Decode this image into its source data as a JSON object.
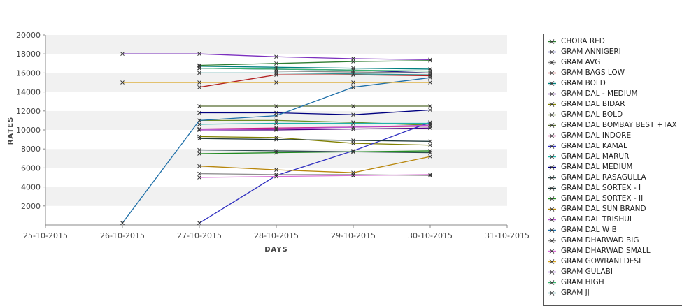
{
  "chart_data": {
    "type": "line",
    "xlabel": "DAYS",
    "ylabel": "RATES",
    "x_ticks": [
      "25-10-2015",
      "26-10-2015",
      "27-10-2015",
      "28-10-2015",
      "29-10-2015",
      "30-10-2015",
      "31-10-2015"
    ],
    "y_ticks": [
      2000,
      4000,
      6000,
      8000,
      10000,
      12000,
      14000,
      16000,
      18000,
      20000
    ],
    "ylim": [
      0,
      20000
    ],
    "grid": "horizontal alternating bands",
    "legend_position": "right",
    "series": [
      {
        "name": "CHORA RED",
        "color": "#2e7d32",
        "points": [
          [
            2,
            16800
          ],
          [
            3,
            17000
          ],
          [
            4,
            17200
          ],
          [
            5,
            17300
          ]
        ]
      },
      {
        "name": "GRAM ANNIGERI",
        "color": "#1a1a8c",
        "points": [
          [
            2,
            16500
          ],
          [
            3,
            16400
          ],
          [
            4,
            16300
          ],
          [
            5,
            16000
          ]
        ]
      },
      {
        "name": "GRAM AVG",
        "color": "#8a8a8a",
        "points": [
          [
            3,
            16200
          ],
          [
            4,
            16100
          ],
          [
            5,
            16000
          ]
        ]
      },
      {
        "name": "GRAM BAGS LOW",
        "color": "#b22222",
        "points": [
          [
            2,
            14500
          ],
          [
            3,
            15800
          ],
          [
            4,
            15800
          ],
          [
            5,
            15700
          ]
        ]
      },
      {
        "name": "GRAM BOLD",
        "color": "#008080",
        "points": [
          [
            2,
            16700
          ],
          [
            3,
            16600
          ],
          [
            4,
            16500
          ],
          [
            5,
            16400
          ]
        ]
      },
      {
        "name": "GRAM DAL - MEDIUM",
        "color": "#4b0082",
        "points": [
          [
            2,
            10000
          ],
          [
            3,
            10000
          ],
          [
            4,
            10100
          ],
          [
            5,
            10200
          ]
        ]
      },
      {
        "name": "GRAM DAL BIDAR",
        "color": "#808000",
        "points": [
          [
            2,
            9300
          ],
          [
            3,
            9200
          ],
          [
            4,
            8600
          ],
          [
            5,
            8400
          ]
        ]
      },
      {
        "name": "GRAM DAL BOLD",
        "color": "#6b8e23",
        "points": [
          [
            2,
            11000
          ],
          [
            3,
            11000
          ],
          [
            4,
            10800
          ],
          [
            5,
            10500
          ]
        ]
      },
      {
        "name": "GRAM DAL BOMBAY BEST +TAX",
        "color": "#556b2f",
        "points": [
          [
            2,
            12500
          ],
          [
            3,
            12500
          ],
          [
            4,
            12500
          ],
          [
            5,
            12500
          ]
        ]
      },
      {
        "name": "GRAM DAL INDORE",
        "color": "#c71585",
        "points": [
          [
            2,
            10100
          ],
          [
            3,
            10200
          ],
          [
            4,
            10300
          ],
          [
            5,
            10400
          ]
        ]
      },
      {
        "name": "GRAM DAL KAMAL",
        "color": "#3030c0",
        "points": [
          [
            2,
            200
          ],
          [
            3,
            5200
          ],
          [
            4,
            7800
          ],
          [
            5,
            10800
          ]
        ]
      },
      {
        "name": "GRAM DAL MARUR",
        "color": "#20b2aa",
        "points": [
          [
            2,
            10600
          ],
          [
            3,
            10700
          ],
          [
            4,
            10700
          ],
          [
            5,
            10700
          ]
        ]
      },
      {
        "name": "GRAM DAL MEDIUM",
        "color": "#000080",
        "points": [
          [
            2,
            11800
          ],
          [
            3,
            11800
          ],
          [
            4,
            11600
          ],
          [
            5,
            12100
          ]
        ]
      },
      {
        "name": "GRAM DAL RASAGULLA",
        "color": "#2f4f4f",
        "points": [
          [
            2,
            7900
          ],
          [
            3,
            7800
          ],
          [
            4,
            7700
          ],
          [
            5,
            7600
          ]
        ]
      },
      {
        "name": "GRAM DAL SORTEX - I",
        "color": "#1f3a3a",
        "points": [
          [
            2,
            9100
          ],
          [
            3,
            9000
          ],
          [
            4,
            8900
          ],
          [
            5,
            8800
          ]
        ]
      },
      {
        "name": "GRAM DAL SORTEX - II",
        "color": "#228b22",
        "points": [
          [
            2,
            7500
          ],
          [
            3,
            7600
          ],
          [
            4,
            7700
          ],
          [
            5,
            7800
          ]
        ]
      },
      {
        "name": "GRAM DAL SUN BRAND",
        "color": "#b8860b",
        "points": [
          [
            2,
            6200
          ],
          [
            3,
            5800
          ],
          [
            4,
            5500
          ],
          [
            5,
            7200
          ]
        ]
      },
      {
        "name": "GRAM DAL TRISHUL",
        "color": "#ba55d3",
        "points": [
          [
            2,
            10000
          ],
          [
            3,
            10100
          ],
          [
            4,
            10300
          ],
          [
            5,
            10500
          ]
        ]
      },
      {
        "name": "GRAM DAL W B",
        "color": "#1e6fa8",
        "points": [
          [
            1,
            200
          ],
          [
            2,
            11000
          ],
          [
            3,
            11500
          ],
          [
            4,
            14500
          ],
          [
            5,
            15500
          ]
        ]
      },
      {
        "name": "GRAM DHARWAD BIG",
        "color": "#909090",
        "points": [
          [
            2,
            5400
          ],
          [
            3,
            5300
          ],
          [
            4,
            5300
          ],
          [
            5,
            5200
          ]
        ]
      },
      {
        "name": "GRAM DHARWAD SMALL",
        "color": "#da70d6",
        "points": [
          [
            2,
            5000
          ],
          [
            3,
            5100
          ],
          [
            4,
            5200
          ],
          [
            5,
            5300
          ]
        ]
      },
      {
        "name": "GRAM GOWRANI DESI",
        "color": "#daa520",
        "points": [
          [
            1,
            15000
          ],
          [
            2,
            15000
          ],
          [
            3,
            15000
          ],
          [
            4,
            15000
          ],
          [
            5,
            15000
          ]
        ]
      },
      {
        "name": "GRAM GULABI",
        "color": "#7b2fbe",
        "points": [
          [
            1,
            18000
          ],
          [
            2,
            18000
          ],
          [
            3,
            17700
          ],
          [
            4,
            17500
          ],
          [
            5,
            17400
          ]
        ]
      },
      {
        "name": "GRAM HIGH",
        "color": "#3cb371",
        "points": [
          [
            2,
            16500
          ],
          [
            3,
            16400
          ],
          [
            4,
            16300
          ],
          [
            5,
            16200
          ]
        ]
      },
      {
        "name": "GRAM JJ",
        "color": "#2f8f8f",
        "points": [
          [
            2,
            16000
          ],
          [
            3,
            16000
          ],
          [
            4,
            15900
          ],
          [
            5,
            15800
          ]
        ]
      }
    ]
  }
}
